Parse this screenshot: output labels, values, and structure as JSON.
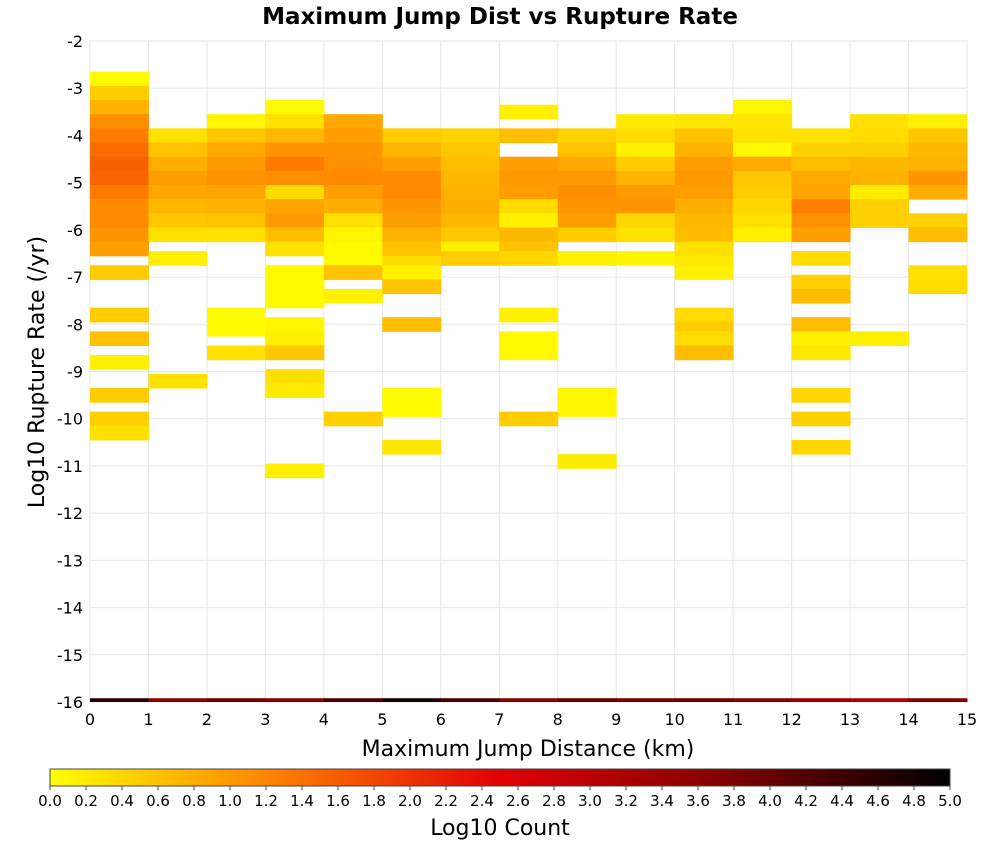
{
  "chart_data": {
    "type": "heatmap",
    "title": "Maximum Jump Dist vs Rupture Rate",
    "xlabel": "Maximum Jump Distance (km)",
    "ylabel": "Log10 Rupture Rate (/yr)",
    "colorbar_label": "Log10 Count",
    "xlim": [
      0,
      15
    ],
    "ylim": [
      -16,
      -2
    ],
    "x_ticks": [
      "0",
      "1",
      "2",
      "3",
      "4",
      "5",
      "6",
      "7",
      "8",
      "9",
      "10",
      "11",
      "12",
      "13",
      "14",
      "15"
    ],
    "y_ticks": [
      "-2",
      "-3",
      "-4",
      "-5",
      "-6",
      "-7",
      "-8",
      "-9",
      "-10",
      "-11",
      "-12",
      "-13",
      "-14",
      "-15",
      "-16"
    ],
    "colorbar_range": [
      0,
      5
    ],
    "colorbar_ticks": [
      "0.0",
      "0.2",
      "0.4",
      "0.6",
      "0.8",
      "1.0",
      "1.2",
      "1.4",
      "1.6",
      "1.8",
      "2.0",
      "2.2",
      "2.4",
      "2.6",
      "2.8",
      "3.0",
      "3.2",
      "3.4",
      "3.6",
      "3.8",
      "4.0",
      "4.2",
      "4.4",
      "4.6",
      "4.8",
      "5.0"
    ],
    "colorscale": [
      "#ffff00",
      "#ff8000",
      "#e00000",
      "#800000",
      "#000000"
    ],
    "grid": true,
    "x_bin_width": 1,
    "y_bin_height": 0.3,
    "cells": [
      [
        0.5,
        -2.8,
        0.05
      ],
      [
        0.5,
        -3.1,
        0.5
      ],
      [
        0.5,
        -3.4,
        0.75
      ],
      [
        0.5,
        -3.7,
        1.1
      ],
      [
        0.5,
        -4.0,
        1.3
      ],
      [
        0.5,
        -4.3,
        1.45
      ],
      [
        0.5,
        -4.6,
        1.55
      ],
      [
        0.5,
        -4.9,
        1.5
      ],
      [
        0.5,
        -5.2,
        1.3
      ],
      [
        0.5,
        -5.5,
        1.15
      ],
      [
        0.5,
        -5.8,
        1.15
      ],
      [
        0.5,
        -6.1,
        1.05
      ],
      [
        0.5,
        -6.4,
        0.95
      ],
      [
        0.5,
        -6.9,
        0.5
      ],
      [
        0.5,
        -7.8,
        0.5
      ],
      [
        0.5,
        -8.3,
        0.6
      ],
      [
        0.5,
        -8.8,
        0.15
      ],
      [
        0.5,
        -9.5,
        0.5
      ],
      [
        0.5,
        -10.0,
        0.45
      ],
      [
        0.5,
        -10.3,
        0.3
      ],
      [
        1.5,
        -4.0,
        0.3
      ],
      [
        1.5,
        -4.3,
        0.6
      ],
      [
        1.5,
        -4.6,
        0.8
      ],
      [
        1.5,
        -4.9,
        0.95
      ],
      [
        1.5,
        -5.2,
        0.85
      ],
      [
        1.5,
        -5.5,
        0.7
      ],
      [
        1.5,
        -5.8,
        0.55
      ],
      [
        1.5,
        -6.1,
        0.3
      ],
      [
        1.5,
        -6.6,
        0.15
      ],
      [
        1.5,
        -9.2,
        0.3
      ],
      [
        2.5,
        -3.7,
        0.1
      ],
      [
        2.5,
        -4.0,
        0.55
      ],
      [
        2.5,
        -4.3,
        0.85
      ],
      [
        2.5,
        -4.6,
        1.0
      ],
      [
        2.5,
        -4.9,
        1.05
      ],
      [
        2.5,
        -5.2,
        0.9
      ],
      [
        2.5,
        -5.5,
        0.75
      ],
      [
        2.5,
        -5.8,
        0.6
      ],
      [
        2.5,
        -6.1,
        0.3
      ],
      [
        2.5,
        -7.8,
        0.05
      ],
      [
        2.5,
        -8.1,
        0.05
      ],
      [
        2.5,
        -8.6,
        0.3
      ],
      [
        3.5,
        -3.4,
        0.05
      ],
      [
        3.5,
        -3.7,
        0.3
      ],
      [
        3.5,
        -4.0,
        0.7
      ],
      [
        3.5,
        -4.3,
        1.05
      ],
      [
        3.5,
        -4.6,
        1.3
      ],
      [
        3.5,
        -4.9,
        1.1
      ],
      [
        3.5,
        -5.2,
        0.35
      ],
      [
        3.5,
        -5.5,
        0.9
      ],
      [
        3.5,
        -5.8,
        1.0
      ],
      [
        3.5,
        -6.1,
        0.65
      ],
      [
        3.5,
        -6.4,
        0.3
      ],
      [
        3.5,
        -6.9,
        0.05
      ],
      [
        3.5,
        -7.2,
        0.05
      ],
      [
        3.5,
        -7.5,
        0.05
      ],
      [
        3.5,
        -8.0,
        0.1
      ],
      [
        3.5,
        -8.3,
        0.15
      ],
      [
        3.5,
        -8.6,
        0.55
      ],
      [
        3.5,
        -9.1,
        0.3
      ],
      [
        3.5,
        -9.4,
        0.2
      ],
      [
        3.5,
        -11.1,
        0.15
      ],
      [
        4.5,
        -3.7,
        0.85
      ],
      [
        4.5,
        -4.0,
        0.95
      ],
      [
        4.5,
        -4.3,
        1.05
      ],
      [
        4.5,
        -4.6,
        1.1
      ],
      [
        4.5,
        -4.9,
        1.15
      ],
      [
        4.5,
        -5.2,
        0.95
      ],
      [
        4.5,
        -5.5,
        0.8
      ],
      [
        4.5,
        -5.8,
        0.3
      ],
      [
        4.5,
        -6.1,
        0.1
      ],
      [
        4.5,
        -6.4,
        0.05
      ],
      [
        4.5,
        -6.7,
        0.05
      ],
      [
        4.5,
        -6.9,
        0.6
      ],
      [
        4.5,
        -7.4,
        0.15
      ],
      [
        4.5,
        -10.0,
        0.45
      ],
      [
        5.5,
        -4.0,
        0.5
      ],
      [
        5.5,
        -4.3,
        0.7
      ],
      [
        5.5,
        -4.6,
        0.95
      ],
      [
        5.5,
        -4.9,
        1.15
      ],
      [
        5.5,
        -5.2,
        1.15
      ],
      [
        5.5,
        -5.5,
        1.05
      ],
      [
        5.5,
        -5.8,
        0.95
      ],
      [
        5.5,
        -6.1,
        0.75
      ],
      [
        5.5,
        -6.4,
        0.6
      ],
      [
        5.5,
        -6.7,
        0.35
      ],
      [
        5.5,
        -6.9,
        0.15
      ],
      [
        5.5,
        -7.2,
        0.6
      ],
      [
        5.5,
        -8.0,
        0.65
      ],
      [
        5.5,
        -9.5,
        0.05
      ],
      [
        5.5,
        -9.8,
        0.05
      ],
      [
        5.5,
        -10.6,
        0.25
      ],
      [
        6.5,
        -4.0,
        0.45
      ],
      [
        6.5,
        -4.3,
        0.55
      ],
      [
        6.5,
        -4.6,
        0.65
      ],
      [
        6.5,
        -4.9,
        0.7
      ],
      [
        6.5,
        -5.2,
        0.75
      ],
      [
        6.5,
        -5.5,
        0.8
      ],
      [
        6.5,
        -5.8,
        0.7
      ],
      [
        6.5,
        -6.1,
        0.55
      ],
      [
        6.5,
        -6.4,
        0.15
      ],
      [
        6.5,
        -6.6,
        0.5
      ],
      [
        7.5,
        -3.5,
        0.15
      ],
      [
        7.5,
        -4.0,
        0.65
      ],
      [
        7.5,
        -4.6,
        0.95
      ],
      [
        7.5,
        -4.9,
        1.0
      ],
      [
        7.5,
        -5.2,
        0.95
      ],
      [
        7.5,
        -5.5,
        0.35
      ],
      [
        7.5,
        -5.8,
        0.15
      ],
      [
        7.5,
        -6.1,
        0.7
      ],
      [
        7.5,
        -6.4,
        0.6
      ],
      [
        7.5,
        -6.6,
        0.4
      ],
      [
        7.5,
        -7.8,
        0.15
      ],
      [
        7.5,
        -8.3,
        0.05
      ],
      [
        7.5,
        -8.6,
        0.05
      ],
      [
        7.5,
        -10.0,
        0.5
      ],
      [
        8.5,
        -4.0,
        0.45
      ],
      [
        8.5,
        -4.3,
        0.6
      ],
      [
        8.5,
        -4.6,
        0.85
      ],
      [
        8.5,
        -4.9,
        1.0
      ],
      [
        8.5,
        -5.2,
        1.1
      ],
      [
        8.5,
        -5.5,
        1.05
      ],
      [
        8.5,
        -5.8,
        0.95
      ],
      [
        8.5,
        -6.1,
        0.5
      ],
      [
        8.5,
        -6.6,
        0.15
      ],
      [
        8.5,
        -9.5,
        0.1
      ],
      [
        8.5,
        -9.8,
        0.1
      ],
      [
        8.5,
        -10.9,
        0.2
      ],
      [
        9.5,
        -3.7,
        0.2
      ],
      [
        9.5,
        -4.0,
        0.35
      ],
      [
        9.5,
        -4.3,
        0.15
      ],
      [
        9.5,
        -4.6,
        0.5
      ],
      [
        9.5,
        -4.9,
        0.75
      ],
      [
        9.5,
        -5.2,
        1.0
      ],
      [
        9.5,
        -5.5,
        1.05
      ],
      [
        9.5,
        -5.8,
        0.4
      ],
      [
        9.5,
        -6.1,
        0.3
      ],
      [
        9.5,
        -6.6,
        0.1
      ],
      [
        10.5,
        -3.7,
        0.25
      ],
      [
        10.5,
        -4.0,
        0.6
      ],
      [
        10.5,
        -4.3,
        0.75
      ],
      [
        10.5,
        -4.6,
        0.95
      ],
      [
        10.5,
        -4.9,
        1.0
      ],
      [
        10.5,
        -5.2,
        0.95
      ],
      [
        10.5,
        -5.5,
        0.8
      ],
      [
        10.5,
        -5.8,
        0.7
      ],
      [
        10.5,
        -6.1,
        0.65
      ],
      [
        10.5,
        -6.4,
        0.3
      ],
      [
        10.5,
        -6.7,
        0.2
      ],
      [
        10.5,
        -6.9,
        0.15
      ],
      [
        10.5,
        -7.8,
        0.35
      ],
      [
        10.5,
        -8.1,
        0.5
      ],
      [
        10.5,
        -8.3,
        0.35
      ],
      [
        10.5,
        -8.6,
        0.65
      ],
      [
        11.5,
        -3.4,
        0.1
      ],
      [
        11.5,
        -3.7,
        0.25
      ],
      [
        11.5,
        -4.0,
        0.3
      ],
      [
        11.5,
        -4.3,
        0.05
      ],
      [
        11.5,
        -4.6,
        0.85
      ],
      [
        11.5,
        -4.9,
        0.55
      ],
      [
        11.5,
        -5.2,
        0.5
      ],
      [
        11.5,
        -5.5,
        0.4
      ],
      [
        11.5,
        -5.8,
        0.3
      ],
      [
        11.5,
        -6.1,
        0.15
      ],
      [
        12.5,
        -4.0,
        0.3
      ],
      [
        12.5,
        -4.3,
        0.45
      ],
      [
        12.5,
        -4.6,
        0.65
      ],
      [
        12.5,
        -4.9,
        0.85
      ],
      [
        12.5,
        -5.2,
        0.9
      ],
      [
        12.5,
        -5.5,
        1.25
      ],
      [
        12.5,
        -5.8,
        1.1
      ],
      [
        12.5,
        -6.1,
        0.95
      ],
      [
        12.5,
        -6.6,
        0.35
      ],
      [
        12.5,
        -7.1,
        0.45
      ],
      [
        12.5,
        -7.4,
        0.65
      ],
      [
        12.5,
        -8.0,
        0.65
      ],
      [
        12.5,
        -8.3,
        0.15
      ],
      [
        12.5,
        -8.6,
        0.25
      ],
      [
        12.5,
        -9.5,
        0.4
      ],
      [
        12.5,
        -10.0,
        0.45
      ],
      [
        12.5,
        -10.6,
        0.4
      ],
      [
        13.5,
        -3.7,
        0.3
      ],
      [
        13.5,
        -4.0,
        0.35
      ],
      [
        13.5,
        -4.3,
        0.45
      ],
      [
        13.5,
        -4.6,
        0.7
      ],
      [
        13.5,
        -4.9,
        0.75
      ],
      [
        13.5,
        -5.2,
        0.2
      ],
      [
        13.5,
        -5.5,
        0.45
      ],
      [
        13.5,
        -5.8,
        0.45
      ],
      [
        13.5,
        -8.3,
        0.15
      ],
      [
        14.5,
        -3.7,
        0.15
      ],
      [
        14.5,
        -4.0,
        0.55
      ],
      [
        14.5,
        -4.3,
        0.7
      ],
      [
        14.5,
        -4.6,
        0.75
      ],
      [
        14.5,
        -4.9,
        1.05
      ],
      [
        14.5,
        -5.2,
        0.8
      ],
      [
        14.5,
        -5.8,
        0.45
      ],
      [
        14.5,
        -6.1,
        0.65
      ],
      [
        14.5,
        -6.9,
        0.3
      ],
      [
        14.5,
        -7.2,
        0.35
      ]
    ],
    "bottom_row_y": -16,
    "bottom_row_values": [
      4.6,
      3.6,
      3.9,
      3.6,
      4.3,
      4.8,
      4.3,
      3.6,
      4.0,
      3.8,
      3.9,
      3.6,
      3.4,
      3.1,
      3.7
    ]
  }
}
